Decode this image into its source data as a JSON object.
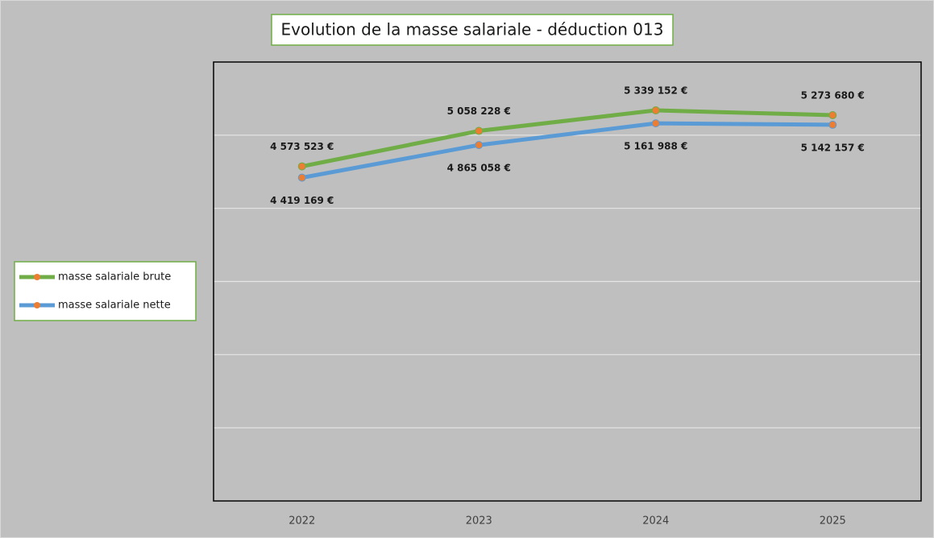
{
  "chart_data": {
    "type": "line",
    "title": "Evolution de la masse salariale - déduction 013",
    "categories": [
      "2022",
      "2023",
      "2024",
      "2025"
    ],
    "series": [
      {
        "name": "masse salariale brute",
        "color": "#70ad47",
        "marker_color": "#ed7d31",
        "values": [
          4573523,
          5058228,
          5339152,
          5273680
        ],
        "value_labels": [
          "4 573 523 €",
          "5 058 228 €",
          "5 339 152 €",
          "5 273 680 €"
        ]
      },
      {
        "name": "masse salariale nette",
        "color": "#5b9bd5",
        "marker_color": "#ed7d31",
        "values": [
          4419169,
          4865058,
          5161988,
          5142157
        ],
        "value_labels": [
          "4 419 169 €",
          "4 865 058 €",
          "5 161 988 €",
          "5 142 157 €"
        ]
      }
    ],
    "ylim": [
      0,
      6000000
    ],
    "yticks": [
      0,
      1000000,
      2000000,
      3000000,
      4000000,
      5000000,
      6000000
    ],
    "grid": true,
    "legend": "left"
  }
}
